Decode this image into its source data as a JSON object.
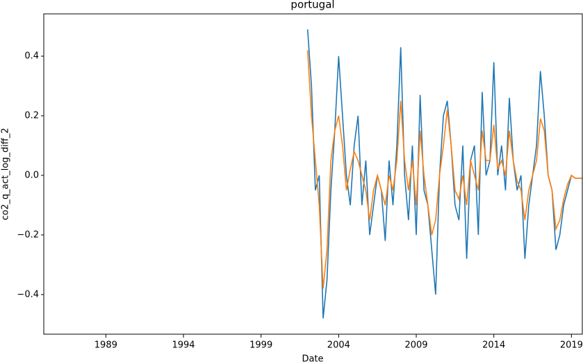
{
  "chart_data": {
    "type": "line",
    "title": "portugal",
    "x_label": "Date",
    "y_label": "co2_q_act_log_diff_2",
    "x": [
      2002,
      2002.25,
      2002.5,
      2002.75,
      2003,
      2003.25,
      2003.5,
      2003.75,
      2004,
      2004.25,
      2004.5,
      2004.75,
      2005,
      2005.25,
      2005.5,
      2005.75,
      2006,
      2006.25,
      2006.5,
      2006.75,
      2007,
      2007.25,
      2007.5,
      2007.75,
      2008,
      2008.25,
      2008.5,
      2008.75,
      2009,
      2009.25,
      2009.5,
      2009.75,
      2010,
      2010.25,
      2010.5,
      2010.75,
      2011,
      2011.25,
      2011.5,
      2011.75,
      2012,
      2012.25,
      2012.5,
      2012.75,
      2013,
      2013.25,
      2013.5,
      2013.75,
      2014,
      2014.25,
      2014.5,
      2014.75,
      2015,
      2015.25,
      2015.5,
      2015.75,
      2016,
      2016.25,
      2016.5,
      2016.75,
      2017,
      2017.25,
      2017.5,
      2017.75,
      2018,
      2018.25,
      2018.5,
      2018.75,
      2019,
      2019.25,
      2019.5,
      2019.7
    ],
    "series": [
      {
        "color": "#1f77b4",
        "values": [
          0.49,
          0.3,
          -0.05,
          0.0,
          -0.48,
          -0.35,
          -0.05,
          0.15,
          0.4,
          0.2,
          0.0,
          -0.1,
          0.1,
          0.2,
          -0.1,
          0.05,
          -0.2,
          -0.1,
          0.0,
          -0.05,
          -0.22,
          0.05,
          -0.1,
          0.1,
          0.43,
          0.0,
          -0.15,
          0.1,
          -0.2,
          0.27,
          -0.05,
          -0.1,
          -0.25,
          -0.4,
          0.0,
          0.2,
          0.25,
          0.1,
          -0.1,
          -0.15,
          0.1,
          -0.28,
          0.05,
          0.1,
          -0.2,
          0.28,
          0.0,
          0.05,
          0.38,
          0.0,
          0.1,
          -0.05,
          0.26,
          0.05,
          -0.05,
          0.0,
          -0.28,
          -0.1,
          0.0,
          0.1,
          0.35,
          0.2,
          0.0,
          -0.05,
          -0.25,
          -0.2,
          -0.1,
          -0.05,
          0.0,
          -0.01,
          -0.01,
          -0.01
        ]
      },
      {
        "color": "#ff7f0e",
        "values": [
          0.42,
          0.2,
          0.05,
          -0.1,
          -0.38,
          -0.25,
          0.05,
          0.15,
          0.2,
          0.1,
          -0.05,
          0.02,
          0.08,
          0.05,
          0.0,
          -0.05,
          -0.15,
          -0.05,
          0.0,
          -0.05,
          -0.1,
          0.0,
          -0.05,
          0.05,
          0.25,
          0.05,
          -0.05,
          0.05,
          -0.1,
          0.15,
          0.0,
          -0.1,
          -0.2,
          -0.15,
          0.0,
          0.1,
          0.22,
          0.1,
          -0.05,
          -0.08,
          0.0,
          -0.1,
          0.05,
          0.0,
          -0.05,
          0.15,
          0.05,
          0.05,
          0.17,
          0.02,
          0.05,
          0.0,
          0.15,
          0.05,
          -0.02,
          -0.05,
          -0.15,
          -0.05,
          0.0,
          0.05,
          0.19,
          0.15,
          0.0,
          -0.05,
          -0.18,
          -0.15,
          -0.08,
          -0.03,
          0.0,
          -0.01,
          -0.01,
          -0.01
        ]
      }
    ],
    "xlim": [
      1985,
      2019.7
    ],
    "xticks": [
      1989,
      1994,
      1999,
      2004,
      2009,
      2014,
      2019
    ],
    "ylim": [
      -0.533,
      0.542
    ],
    "yticks": [
      {
        "value": -0.4,
        "label": "−0.4"
      },
      {
        "value": -0.2,
        "label": "−0.2"
      },
      {
        "value": 0,
        "label": "0.0"
      },
      0.2,
      0.4
    ],
    "grid": false
  }
}
